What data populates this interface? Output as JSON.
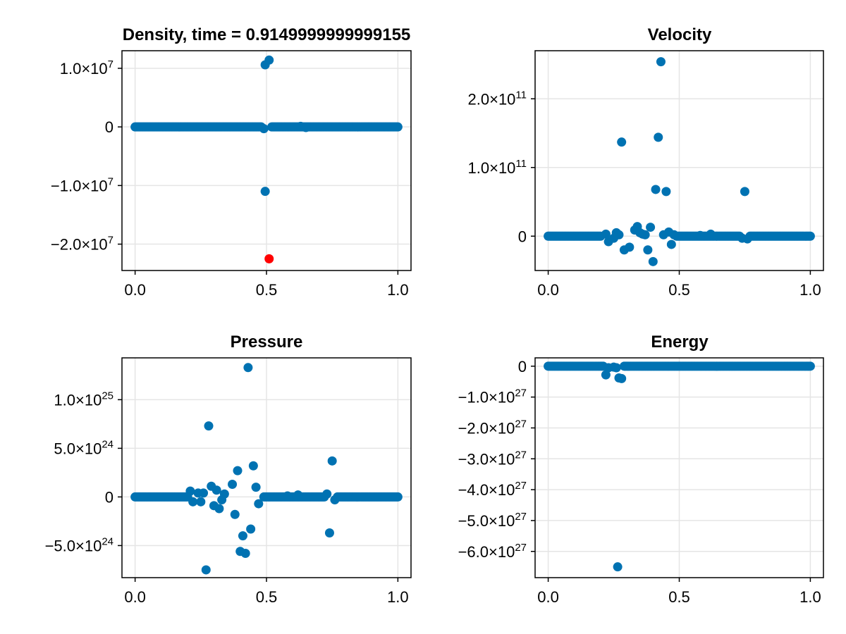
{
  "chart_data": [
    {
      "type": "scatter",
      "title": "Density, time = 0.9149999999999155",
      "xlim": [
        -0.05,
        1.05
      ],
      "ylim": [
        -24500000,
        13000000
      ],
      "xticks": [
        {
          "value": 0.0,
          "label": "0.0"
        },
        {
          "value": 0.5,
          "label": "0.5"
        },
        {
          "value": 1.0,
          "label": "1.0"
        }
      ],
      "yticks": [
        {
          "value": 10000000,
          "mant": "1.0×10",
          "exp": "7"
        },
        {
          "value": 0,
          "mant": "0",
          "exp": ""
        },
        {
          "value": -10000000,
          "mant": "−1.0×10",
          "exp": "7"
        },
        {
          "value": -20000000,
          "mant": "−2.0×10",
          "exp": "7"
        }
      ],
      "baseline": {
        "y": 0,
        "ranges": [
          [
            0.0,
            0.48
          ],
          [
            0.52,
            1.0
          ]
        ]
      },
      "points": [
        {
          "x": 0.495,
          "y": 10600000
        },
        {
          "x": 0.51,
          "y": 11400000
        },
        {
          "x": 0.49,
          "y": -300000
        },
        {
          "x": 0.495,
          "y": -11000000
        },
        {
          "x": 0.63,
          "y": 100000
        },
        {
          "x": 0.65,
          "y": -100000
        }
      ],
      "highlight": [
        {
          "x": 0.51,
          "y": -22500000,
          "color": "#ff0000"
        }
      ],
      "grid": true
    },
    {
      "type": "scatter",
      "title": "Velocity",
      "xlim": [
        -0.05,
        1.05
      ],
      "ylim": [
        -50000000000,
        270000000000
      ],
      "xticks": [
        {
          "value": 0.0,
          "label": "0.0"
        },
        {
          "value": 0.5,
          "label": "0.5"
        },
        {
          "value": 1.0,
          "label": "1.0"
        }
      ],
      "yticks": [
        {
          "value": 200000000000,
          "mant": "2.0×10",
          "exp": "11"
        },
        {
          "value": 100000000000,
          "mant": "1.0×10",
          "exp": "11"
        },
        {
          "value": 0,
          "mant": "0",
          "exp": ""
        }
      ],
      "baseline": {
        "y": 0,
        "ranges": [
          [
            0.0,
            0.2
          ],
          [
            0.49,
            0.73
          ],
          [
            0.77,
            1.0
          ]
        ]
      },
      "points": [
        {
          "x": 0.43,
          "y": 254000000000
        },
        {
          "x": 0.28,
          "y": 137000000000
        },
        {
          "x": 0.42,
          "y": 144000000000
        },
        {
          "x": 0.41,
          "y": 68000000000
        },
        {
          "x": 0.45,
          "y": 65000000000
        },
        {
          "x": 0.75,
          "y": 65000000000
        },
        {
          "x": 0.22,
          "y": 3000000000
        },
        {
          "x": 0.23,
          "y": -8000000000
        },
        {
          "x": 0.25,
          "y": -3000000000
        },
        {
          "x": 0.26,
          "y": 5000000000
        },
        {
          "x": 0.27,
          "y": 2000000000
        },
        {
          "x": 0.29,
          "y": -20000000000
        },
        {
          "x": 0.31,
          "y": -16000000000
        },
        {
          "x": 0.33,
          "y": 9000000000
        },
        {
          "x": 0.34,
          "y": 14000000000
        },
        {
          "x": 0.35,
          "y": 5000000000
        },
        {
          "x": 0.36,
          "y": 3000000000
        },
        {
          "x": 0.37,
          "y": 2000000000
        },
        {
          "x": 0.38,
          "y": -20000000000
        },
        {
          "x": 0.39,
          "y": 13000000000
        },
        {
          "x": 0.4,
          "y": -37000000000
        },
        {
          "x": 0.44,
          "y": 2000000000
        },
        {
          "x": 0.46,
          "y": 6000000000
        },
        {
          "x": 0.47,
          "y": -12000000000
        },
        {
          "x": 0.48,
          "y": 2000000000
        },
        {
          "x": 0.74,
          "y": -3000000000
        },
        {
          "x": 0.76,
          "y": -4000000000
        },
        {
          "x": 0.58,
          "y": 1000000000
        },
        {
          "x": 0.62,
          "y": 3000000000
        }
      ],
      "grid": true
    },
    {
      "type": "scatter",
      "title": "Pressure",
      "xlim": [
        -0.05,
        1.05
      ],
      "ylim": [
        -8300000000000000000000000,
        14300000000000000000000000
      ],
      "xticks": [
        {
          "value": 0.0,
          "label": "0.0"
        },
        {
          "value": 0.5,
          "label": "0.5"
        },
        {
          "value": 1.0,
          "label": "1.0"
        }
      ],
      "yticks": [
        {
          "value": 10000000000000000000000000,
          "mant": "1.0×10",
          "exp": "25"
        },
        {
          "value": 5000000000000000000000000,
          "mant": "5.0×10",
          "exp": "24"
        },
        {
          "value": 0,
          "mant": "0",
          "exp": ""
        },
        {
          "value": -5000000000000000000000000,
          "mant": "−5.0×10",
          "exp": "24"
        }
      ],
      "baseline": {
        "y": 0,
        "ranges": [
          [
            0.0,
            0.2
          ],
          [
            0.49,
            0.72
          ],
          [
            0.77,
            1.0
          ]
        ]
      },
      "points": [
        {
          "x": 0.43,
          "y": 13300000000000000000000000
        },
        {
          "x": 0.28,
          "y": 7300000000000000000000000
        },
        {
          "x": 0.45,
          "y": 3200000000000000000000000
        },
        {
          "x": 0.39,
          "y": 2700000000000000000000000
        },
        {
          "x": 0.75,
          "y": 3700000000000000000000000
        },
        {
          "x": 0.37,
          "y": 1300000000000000000000000
        },
        {
          "x": 0.29,
          "y": 1100000000000000000000000
        },
        {
          "x": 0.46,
          "y": 1000000000000000000000000
        },
        {
          "x": 0.21,
          "y": 600000000000000000000000
        },
        {
          "x": 0.31,
          "y": 700000000000000000000000
        },
        {
          "x": 0.22,
          "y": -500000000000000000000000
        },
        {
          "x": 0.24,
          "y": 400000000000000000000000
        },
        {
          "x": 0.25,
          "y": -500000000000000000000000
        },
        {
          "x": 0.26,
          "y": 400000000000000000000000
        },
        {
          "x": 0.3,
          "y": -900000000000000000000000
        },
        {
          "x": 0.32,
          "y": -1200000000000000000000000
        },
        {
          "x": 0.33,
          "y": -300000000000000000000000
        },
        {
          "x": 0.34,
          "y": 300000000000000000000000
        },
        {
          "x": 0.38,
          "y": -1800000000000000000000000
        },
        {
          "x": 0.41,
          "y": -4000000000000000000000000
        },
        {
          "x": 0.4,
          "y": -5600000000000000000000000
        },
        {
          "x": 0.42,
          "y": -5800000000000000000000000
        },
        {
          "x": 0.44,
          "y": -3300000000000000000000000
        },
        {
          "x": 0.47,
          "y": -700000000000000000000000
        },
        {
          "x": 0.27,
          "y": -7500000000000000000000000
        },
        {
          "x": 0.74,
          "y": -3700000000000000000000000
        },
        {
          "x": 0.73,
          "y": 300000000000000000000000
        },
        {
          "x": 0.76,
          "y": -300000000000000000000000
        },
        {
          "x": 0.58,
          "y": 100000000000000000000000
        },
        {
          "x": 0.62,
          "y": 200000000000000000000000
        }
      ],
      "grid": true
    },
    {
      "type": "scatter",
      "title": "Energy",
      "xlim": [
        -0.05,
        1.05
      ],
      "ylim": [
        -6850000000000000000000000000,
        270000000000000000000000000
      ],
      "xticks": [
        {
          "value": 0.0,
          "label": "0.0"
        },
        {
          "value": 0.5,
          "label": "0.5"
        },
        {
          "value": 1.0,
          "label": "1.0"
        }
      ],
      "yticks": [
        {
          "value": 0,
          "mant": "0",
          "exp": ""
        },
        {
          "value": -1000000000000000000000000000,
          "mant": "−1.0×10",
          "exp": "27"
        },
        {
          "value": -2000000000000000000000000000,
          "mant": "−2.0×10",
          "exp": "27"
        },
        {
          "value": -3000000000000000000000000000,
          "mant": "−3.0×10",
          "exp": "27"
        },
        {
          "value": -4000000000000000000000000000,
          "mant": "−4.0×10",
          "exp": "27"
        },
        {
          "value": -5000000000000000000000000000,
          "mant": "−5.0×10",
          "exp": "27"
        },
        {
          "value": -6000000000000000000000000000,
          "mant": "−6.0×10",
          "exp": "27"
        }
      ],
      "baseline": {
        "y": 0,
        "ranges": [
          [
            0.0,
            0.21
          ],
          [
            0.29,
            1.0
          ]
        ]
      },
      "points": [
        {
          "x": 0.22,
          "y": -280000000000000000000000000
        },
        {
          "x": 0.23,
          "y": -50000000000000000000000000
        },
        {
          "x": 0.25,
          "y": -30000000000000000000000000
        },
        {
          "x": 0.26,
          "y": -50000000000000000000000000
        },
        {
          "x": 0.27,
          "y": -380000000000000000000000000
        },
        {
          "x": 0.28,
          "y": -400000000000000000000000000
        },
        {
          "x": 0.265,
          "y": -6500000000000000000000000000
        }
      ],
      "grid": true
    }
  ],
  "colors": {
    "series": "#0072b2",
    "highlight": "#ff0000"
  }
}
